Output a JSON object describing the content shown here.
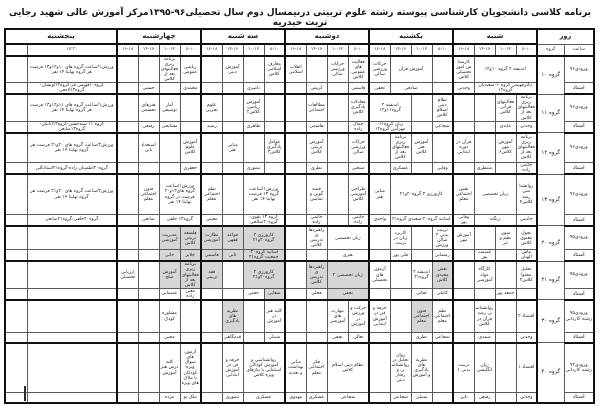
{
  "title": "برنامه کلاسی دانشجویان کارشناسی پیوسته رشته علوم تربیتی درنیمسال دوم سال تحصیلی۹۶-۱۳۹۵مرکز آموزش عالی شهید رجایی تربت حیدریه",
  "corner": {
    "day": "روز",
    "time": "ساعت",
    "group": "گروه",
    "teacher_row_label": "استاد"
  },
  "days": [
    {
      "name": "شنبه",
      "slots": [
        "۸-۱۰",
        "۱۰-۱۲",
        "۱۴-۱۶",
        "۱۶-۱۸"
      ]
    },
    {
      "name": "یکشنبه",
      "slots": [
        "۸-۱۰",
        "۱۰-۱۲",
        "۱۴-۱۶",
        "۱۶-۱۸"
      ]
    },
    {
      "name": "دوشنبه",
      "slots": [
        "۸-۱۰",
        "۱۰-۱۲",
        "۱۴-۱۶",
        "۱۶-۱۸"
      ]
    },
    {
      "name": "سه شنبه",
      "slots": [
        "۸-۱۰",
        "۱۰-۱۲",
        "۱۴-۱۶",
        "۱۶-۱۸"
      ]
    },
    {
      "name": "چهارشنبه",
      "slots": [
        "۸-۱۰",
        "۱۰-۱۲",
        "۱۴-۱۶",
        "۱۶-۱۸"
      ]
    },
    {
      "name": "پنجشنبه",
      "slots": [
        "۱۷:۳۰",
        ""
      ]
    }
  ],
  "bands": [
    {
      "entry": "ورودی۹۶",
      "group": "گروه ۱۰",
      "course": [
        [
          "اندیشه ۲ گروه ۱۰و۱۲",
          3
        ],
        [
          "کارشناس امور تحصیلی کلاس",
          1
        ],
        "",
        [
          "آموزش قرآن",
          2
        ],
        [
          "حرکات ورزشی سالن",
          1
        ],
        [
          "فعالیت های عمومی کلاس",
          1
        ],
        [
          "حرکات ورزشی سالن",
          1
        ],
        "",
        [
          "انقلاب اسلامی",
          1
        ],
        [
          "معارف اسلامی کلاس",
          1
        ],
        "",
        [
          "آموزش دینی",
          1
        ],
        "",
        [
          "ریاضی عمومی",
          1
        ],
        [
          "برنامه ریزی فعالیتهای بعد از کلاس",
          1
        ],
        "",
        "",
        [
          "ورزش۱/ساعت گروه های ۱۰و۱۲و۱۳ فرصت هر گروه نهایتا ۱۴ نفر",
          1
        ],
        ""
      ],
      "teacher": [
        [
          "دکترفهیمی گروه۱۰-سعیدیان گروه۱۲",
          3
        ],
        [
          "وحدتی",
          1
        ],
        "",
        [
          "صادقی",
          2
        ],
        [
          "نجفی",
          1
        ],
        [
          "قاسمی",
          1
        ],
        "",
        [
          "کریمی",
          1
        ],
        "",
        "",
        [
          "ناصری",
          1
        ],
        "",
        "",
        [
          "محمدی",
          1
        ],
        "",
        [
          "حسنی",
          1
        ],
        "",
        [
          "گروه۱۰فهیمی فر-گروه۱۲اویسان-گروه۱۳لامعی",
          1
        ],
        ""
      ]
    },
    {
      "entry": "ورودی۹۶",
      "group": "گروه ۱۱",
      "course": [
        [
          "برنامه ریزی فعالیتهای بعد از کلاس",
          1
        ],
        [
          "فعالیتهای قرآنی کلاس",
          1
        ],
        "",
        "",
        [
          "نظام دینی اسلام کلاس",
          1
        ],
        "",
        [
          "اندیشه ۲ گروه۱۱و۱۲",
          2
        ],
        [
          "معادلات یادگیری کلاس",
          1
        ],
        "",
        [
          "مطالعات اجتماعی",
          1
        ],
        "",
        "",
        [
          "آموزش ریاضی کلاس۲",
          1
        ],
        "",
        [
          "علوم تجربی",
          1
        ],
        "",
        [
          "آمار توصیفی",
          1
        ],
        [
          "هنرهای تجسمی",
          1
        ],
        "",
        [
          "ورزش۱/ساعت گروه های ۱۱و۱۲و۱۳ فرصت هر گروه نهایتا ۱۴ نفر",
          1
        ],
        ""
      ],
      "teacher": [
        [
          "وحدتی",
          1
        ],
        [
          "عابدی",
          1
        ],
        "",
        "",
        [
          "شجاعی",
          1
        ],
        "",
        [
          "زبان گروه۱۱-مهرآیین گروه۱۲",
          2
        ],
        [
          "جمال زاده",
          1
        ],
        "",
        [
          "هاشمی",
          1
        ],
        "",
        "",
        [
          "طاهری",
          1
        ],
        "",
        [
          "رشید",
          1
        ],
        "",
        [
          "مشایخی",
          1
        ],
        [
          "رفیعی",
          1
        ],
        "",
        [
          "گروه ۱۱ سیدحسن-گروه۱۲اتابکی-گروه۱۳صانعی",
          1
        ],
        ""
      ]
    },
    {
      "entry": "ورودی۹۶",
      "group": "گروه ۱۲",
      "course": [
        [
          "برنامه ریزی فعالیتهای بعد از کلاس",
          1
        ],
        [
          "آموزش مهر کلاس۶",
          1
        ],
        "",
        [
          "قرآن در دوره ابتدایی",
          1
        ],
        "",
        [
          "آموزش هنر کلاس",
          1
        ],
        [
          "برنامه ریزی فعالیتهای بعد از کلاس",
          1
        ],
        "",
        [
          "حرکات ورزشی سالن",
          1
        ],
        "",
        [
          "آموزش تربیتی کلاس",
          1
        ],
        "",
        [
          "عوامل یادگیری کلاس۳",
          1
        ],
        "",
        [
          "مبانی هنر",
          1
        ],
        "",
        [
          "آموزش علوم کلاس",
          1
        ],
        "",
        [
          "استعداد یابی",
          1
        ],
        "",
        [
          "ورزش۲/ساعت گروه های ۲۰و۲۱ فرصت هر گروه نهایتا ۱۴ نفر",
          1
        ],
        ""
      ],
      "teacher": [
        [
          "حاتمی زاده",
          1
        ],
        "",
        [
          "منتظری",
          1
        ],
        "",
        [
          "وفایی",
          1
        ],
        "",
        [
          "عسکری",
          1
        ],
        "",
        [
          "صنعتی",
          1
        ],
        "",
        [
          "نظری",
          1
        ],
        "",
        "",
        [
          "تیموری",
          1
        ],
        "",
        "",
        [
          "جعفری",
          1
        ],
        "",
        "",
        "",
        [
          "گروه۲۰اطمینان زاده-گروه۲۱استادکلی",
          1
        ],
        ""
      ]
    },
    {
      "entry": "ورودی۹۶",
      "group": "گروه ۱۳",
      "course": [
        [
          "روانشناسی رشد کلاس۴",
          1
        ],
        [
          "زبان تخصصی",
          2
        ],
        [
          "نقش اجتماعی معلم",
          1
        ],
        [
          "کارورزی ۲ گروه۲۰و۲۱",
          3
        ],
        [
          "مبانی هنر",
          1
        ],
        [
          "طراحی آموزشی کلاس",
          1
        ],
        "",
        [
          "قصه گویی و نمایش",
          1
        ],
        "",
        [
          "ورزش۱/ساعت گروه ۱۳ فرصت نهایتا ۱۴ نفر",
          2
        ],
        "",
        [
          "نظم اجتماعی معلم",
          1
        ],
        [
          "ورزش۱/ساعت گروه های۱۳و۲۰ فرصت در گروه نهایتا ۱۴ نفر",
          2
        ],
        [
          "فنون اجتماعی معلم",
          1
        ],
        "",
        [
          "ورزش۲/ساعت گروه های ۲۰و۲۱ فرصت هر گروه نهایتا ۱۴ نفر",
          1
        ],
        ""
      ],
      "teacher": [
        [
          "خادمی",
          1
        ],
        [
          "زنگنه",
          2
        ],
        [
          "وفایی پور",
          1
        ],
        [
          "اساتید گروه۲۰-سعیدی گروه۲۱",
          3
        ],
        [
          "واحدی",
          1
        ],
        [
          "حاتمی زاده",
          1
        ],
        "",
        [
          "حاتمی زاده",
          1
        ],
        "",
        [
          "گروه ۱۳ نقوی-گروه۲۰صالحی",
          2
        ],
        "",
        [
          "معینی",
          1
        ],
        [
          "گروه۱۳ خلفی",
          2
        ],
        [
          "صانعی",
          1
        ],
        "",
        [
          "گروه۲۰خلفی-گروه۲۱صانعی",
          1
        ],
        ""
      ]
    },
    {
      "entry": "ورودی۹۵",
      "group": "گروه ۲۰",
      "course": [
        [
          "تحول معنوی کلاس",
          1
        ],
        [
          "متون نظم و نثر",
          1
        ],
        "",
        [
          "آموزش مهر",
          1
        ],
        [
          "تربیت بدنی ۲ سالن ورزش",
          1
        ],
        "",
        [
          "کاربرد زبان در تربیت",
          1
        ],
        "",
        [
          "زبان تخصصی",
          2
        ],
        [
          "راهبردهای تدریس کلاس",
          1
        ],
        "",
        [
          "کارورزی ۲ گروه۲۰و۲۱",
          2,
          1
        ],
        [
          "قواعد فقهی",
          1,
          1
        ],
        [
          "نظارت آموزشی",
          1,
          1
        ],
        [
          "فلسفه تربیتی کلاس",
          1,
          1
        ],
        [
          "مدیریت آموزشی",
          1,
          1
        ],
        "",
        "",
        "",
        ""
      ],
      "teacher": [
        [
          "ماش الهیان",
          1
        ],
        "",
        [
          "عصمت پور",
          1
        ],
        "",
        [
          "رمضانی",
          1
        ],
        "",
        [
          "قلی پور",
          1
        ],
        "",
        [
          "هنری",
          2
        ],
        "",
        "",
        [
          "اساتید گروه۲۰-جمعیت گروه۲۱",
          2,
          1
        ],
        [
          "ثانی",
          1,
          1
        ],
        [
          "قاسمی",
          1,
          1
        ],
        [
          "جلایر",
          1,
          1
        ],
        [
          "خانی",
          1,
          1
        ],
        "",
        "",
        "",
        ""
      ]
    },
    {
      "entry": "ورودی۹۵",
      "group": "گروه ۲۱",
      "course": [
        [
          "تحلیل محتوا کلاس۲",
          1
        ],
        "",
        [
          "کارگاه مواد آموزشی",
          1
        ],
        "",
        [
          "نقش مجیدی کلاس",
          1,
          1
        ],
        [
          "اندیشه ۲ گروه۲۱",
          1
        ],
        "",
        [
          "آزمون های تحصیلی",
          1
        ],
        [
          "زبان تخصصی ۲",
          2,
          1
        ],
        [
          "راهبردهای تدریس کلاس",
          1,
          1
        ],
        "",
        [
          "کارورزی ۲ گروه۲۰و۲۱",
          2,
          1
        ],
        "",
        [
          "فقه تربیتی",
          1,
          1
        ],
        [
          "برنامه ریزی فعالیتهای بعد از کلاس",
          1,
          1
        ],
        [
          "آموزش صلح",
          1,
          1
        ],
        "",
        [
          "ارزیابی تحصیلی",
          1
        ],
        "",
        ""
      ],
      "teacher": [
        "",
        [
          "جمعه پور",
          1
        ],
        "",
        "",
        [
          "کاملی",
          1
        ],
        [
          "نجاتی",
          1
        ],
        "",
        "",
        [
          "نجفی",
          2,
          1
        ],
        [
          "فجلی",
          1
        ],
        "",
        [
          "صفایی",
          1,
          1
        ],
        [
          "حجتی",
          1
        ],
        "",
        "",
        [
          "معین زاده",
          1
        ],
        [
          "عصمایی",
          1
        ],
        "",
        "",
        "",
        ""
      ]
    },
    {
      "entry": "ورودی۹۵ رشته کاردانی",
      "group": "گروه ۳۰",
      "course": [
        [
          "اقتصاد ۲",
          1
        ],
        "",
        [
          "روانشناسی رشد قرآن در کلاس",
          1
        ],
        "",
        [
          "نظم اجتماعی معلم",
          1
        ],
        [
          "فنون اجتماعی معلم",
          1,
          1
        ],
        "",
        [
          "حرفه و فن در آموزش ابتدایی",
          1
        ],
        [
          "حرکت و ورزش در آموزش",
          1
        ],
        [
          "مهارت های آموزشی",
          1
        ],
        "",
        "",
        [
          "کلید هنر در آموزش",
          1
        ],
        "",
        [
          "نظریه های یادگیری",
          1,
          1
        ],
        "",
        "",
        [
          "مشاوره کودک",
          1
        ],
        "",
        "",
        "",
        ""
      ],
      "teacher": [
        [
          "وحدتی",
          1
        ],
        "",
        [
          "صمدی",
          1
        ],
        "",
        [
          "شجاعی",
          1
        ],
        [
          "نظری",
          1
        ],
        "",
        "",
        [
          "تعالی",
          1
        ],
        [
          "نجفی",
          1
        ],
        "",
        "",
        [
          "شنبلی",
          1
        ],
        "",
        [
          "قدمگاهی",
          1
        ],
        "",
        "",
        [
          "محبی",
          1
        ],
        "",
        "",
        "",
        ""
      ]
    },
    {
      "entry": "ورودی۹۴ رشته کاردانی",
      "group": "گروه ۴۰",
      "course": [
        [
          "اقتصاد ۱",
          1
        ],
        "",
        [
          "زبان انگلیسی",
          1
        ],
        [
          "تربیت بدنی ۱",
          1
        ],
        "",
        [
          "نظریه های یادگیری و آموزش",
          1
        ],
        [
          "روان تحلیل در روانشناسی و رفتار دینی",
          1
        ],
        "",
        [
          "نظام دینی اسلام کلاس",
          2
        ],
        [
          "فکر اجتماعی معلم",
          1
        ],
        [
          "مبانی بهداشت و تغذیه",
          1
        ],
        [
          "روانشناسی و آموزش کودکان استثنایی با نیازهای ویژه کلاس",
          2
        ],
        [
          "حرفه و فن در آموزش ابتدایی",
          1
        ],
        "",
        [
          "آزمون های سوال ویژه کودکان با ملاک های ویژه",
          1
        ],
        [
          "کلید درس هنر آموزش",
          1
        ],
        "",
        "",
        "",
        ""
      ],
      "teacher": [
        [
          "وحدتی",
          1
        ],
        "",
        [
          "رفیعی",
          1
        ],
        [
          "ثانی",
          1
        ],
        "",
        [
          "شنبلی",
          1
        ],
        [
          "شجاعی",
          1
        ],
        "",
        [
          "شجاعی",
          2
        ],
        [
          "عسکری",
          1
        ],
        [
          "مهدوی",
          1
        ],
        [
          "عسکری",
          2
        ],
        [
          "تیموری",
          1
        ],
        "",
        [
          "ملک نو",
          1
        ],
        [
          "مژده",
          1
        ],
        "",
        "",
        "",
        ""
      ]
    }
  ]
}
